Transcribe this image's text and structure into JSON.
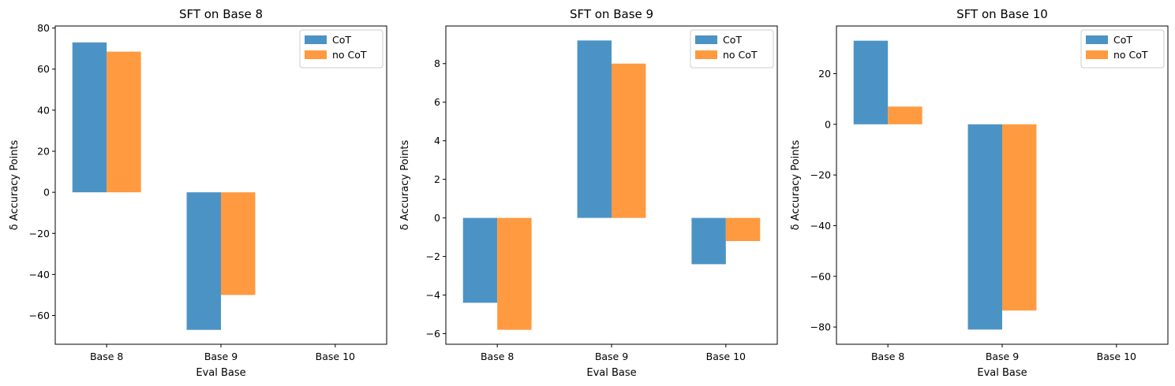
{
  "colors": {
    "cot": "#4c93c5",
    "no_cot": "#ff9a40",
    "frame": "#000000",
    "legend_border": "#cccccc"
  },
  "chart_data": [
    {
      "type": "bar",
      "title": "SFT on Base 8",
      "xlabel": "Eval Base",
      "ylabel": "δ Accuracy Points",
      "categories": [
        "Base 8",
        "Base 9",
        "Base 10"
      ],
      "series": [
        {
          "name": "CoT",
          "values": [
            73,
            -67,
            null
          ]
        },
        {
          "name": "no CoT",
          "values": [
            68.5,
            -50,
            null
          ]
        }
      ],
      "ylim": [
        -74,
        81
      ],
      "yticks": [
        -60,
        -40,
        -20,
        0,
        20,
        40,
        60,
        80
      ],
      "ytick_labels": [
        "−60",
        "−40",
        "−20",
        "0",
        "20",
        "40",
        "60",
        "80"
      ],
      "legend": "top-right"
    },
    {
      "type": "bar",
      "title": "SFT on Base 9",
      "xlabel": "Eval Base",
      "ylabel": "δ Accuracy Points",
      "categories": [
        "Base 8",
        "Base 9",
        "Base 10"
      ],
      "series": [
        {
          "name": "CoT",
          "values": [
            -4.4,
            9.2,
            -2.4
          ]
        },
        {
          "name": "no CoT",
          "values": [
            -5.8,
            8.0,
            -1.2
          ]
        }
      ],
      "ylim": [
        -6.55,
        9.95
      ],
      "yticks": [
        -6,
        -4,
        -2,
        0,
        2,
        4,
        6,
        8
      ],
      "ytick_labels": [
        "−6",
        "−4",
        "−2",
        "0",
        "2",
        "4",
        "6",
        "8"
      ],
      "legend": "top-right"
    },
    {
      "type": "bar",
      "title": "SFT on Base 10",
      "xlabel": "Eval Base",
      "ylabel": "δ Accuracy Points",
      "categories": [
        "Base 8",
        "Base 9",
        "Base 10"
      ],
      "series": [
        {
          "name": "CoT",
          "values": [
            33,
            -81,
            null
          ]
        },
        {
          "name": "no CoT",
          "values": [
            7,
            -73.5,
            null
          ]
        }
      ],
      "ylim": [
        -86.8,
        38.8
      ],
      "yticks": [
        -80,
        -60,
        -40,
        -20,
        0,
        20
      ],
      "ytick_labels": [
        "−80",
        "−60",
        "−40",
        "−20",
        "0",
        "20"
      ],
      "legend": "top-right"
    }
  ]
}
